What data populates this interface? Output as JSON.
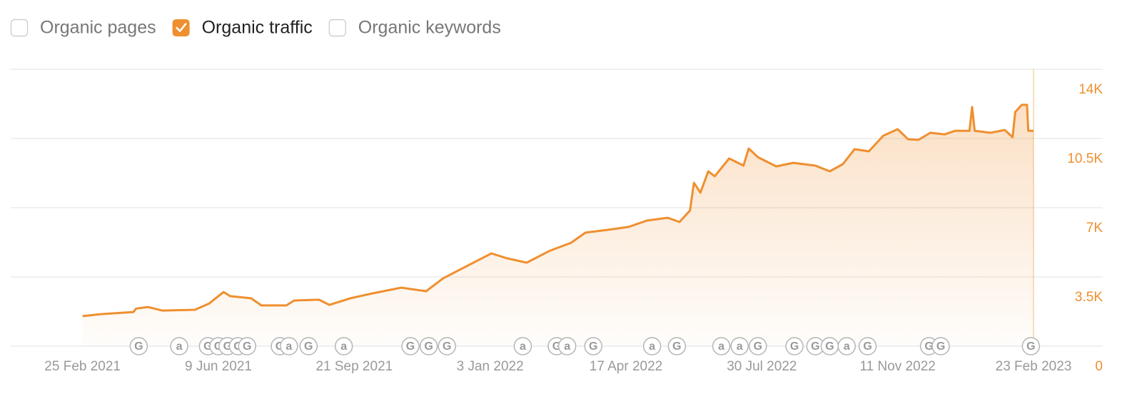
{
  "controls": [
    {
      "label": "Organic pages",
      "checked": false
    },
    {
      "label": "Organic traffic",
      "checked": true
    },
    {
      "label": "Organic keywords",
      "checked": false
    }
  ],
  "chart_data": {
    "type": "area",
    "x": [
      "2021-02-25",
      "2021-03-11",
      "2021-04-05",
      "2021-04-07",
      "2021-04-16",
      "2021-04-27",
      "2021-05-22",
      "2021-06-02",
      "2021-06-13",
      "2021-06-18",
      "2021-07-04",
      "2021-07-12",
      "2021-07-31",
      "2021-08-06",
      "2021-08-25",
      "2021-09-02",
      "2021-09-18",
      "2021-10-05",
      "2021-10-27",
      "2021-11-15",
      "2021-11-28",
      "2021-12-17",
      "2022-01-04",
      "2022-01-16",
      "2022-01-31",
      "2022-02-18",
      "2022-03-06",
      "2022-03-17",
      "2022-04-03",
      "2022-04-19",
      "2022-05-03",
      "2022-05-19",
      "2022-05-28",
      "2022-06-05",
      "2022-06-08",
      "2022-06-13",
      "2022-06-19",
      "2022-06-24",
      "2022-07-05",
      "2022-07-16",
      "2022-07-20",
      "2022-07-27",
      "2022-08-10",
      "2022-08-23",
      "2022-09-09",
      "2022-09-20",
      "2022-09-30",
      "2022-10-09",
      "2022-10-20",
      "2022-10-31",
      "2022-11-11",
      "2022-11-19",
      "2022-11-27",
      "2022-12-06",
      "2022-12-17",
      "2022-12-25",
      "2023-01-05",
      "2023-01-07",
      "2023-01-09",
      "2023-01-21",
      "2023-02-01",
      "2023-02-07",
      "2023-02-09",
      "2023-02-14",
      "2023-02-18",
      "2023-02-19",
      "2023-02-23"
    ],
    "series": [
      {
        "name": "Organic traffic",
        "color": "#ef8f2f",
        "values": [
          1520,
          1620,
          1730,
          1900,
          1980,
          1800,
          1840,
          2160,
          2740,
          2530,
          2420,
          2060,
          2060,
          2310,
          2350,
          2090,
          2420,
          2670,
          2960,
          2780,
          3430,
          4080,
          4690,
          4440,
          4220,
          4830,
          5230,
          5740,
          5880,
          6030,
          6350,
          6490,
          6280,
          6860,
          8260,
          7760,
          8840,
          8590,
          9490,
          9130,
          9990,
          9560,
          9090,
          9270,
          9130,
          8840,
          9200,
          9960,
          9850,
          10640,
          10970,
          10460,
          10430,
          10790,
          10710,
          10890,
          10890,
          12090,
          10890,
          10790,
          10930,
          10570,
          11840,
          12200,
          12200,
          10890,
          10890
        ]
      }
    ],
    "xlim": [
      "2021-01-01",
      "2023-04-17"
    ],
    "xticks": [
      {
        "value": "2021-02-25",
        "label": "25 Feb 2021"
      },
      {
        "value": "2021-06-09",
        "label": "9 Jun 2021"
      },
      {
        "value": "2021-09-21",
        "label": "21 Sep 2021"
      },
      {
        "value": "2022-01-03",
        "label": "3 Jan 2022"
      },
      {
        "value": "2022-04-17",
        "label": "17 Apr 2022"
      },
      {
        "value": "2022-07-30",
        "label": "30 Jul 2022"
      },
      {
        "value": "2022-11-11",
        "label": "11 Nov 2022"
      },
      {
        "value": "2023-02-23",
        "label": "23 Feb 2023"
      }
    ],
    "ylim": [
      0,
      14000
    ],
    "yticks": [
      0,
      {
        "value": 3500,
        "label": "3.5K"
      },
      {
        "value": 7000,
        "label": "7K"
      },
      {
        "value": 10500,
        "label": "10.5K"
      },
      {
        "value": 14000,
        "label": "14K"
      }
    ],
    "grid": true,
    "markers": [
      {
        "x": "2021-04-09",
        "label": "G"
      },
      {
        "x": "2021-05-10",
        "label": "a"
      },
      {
        "x": "2021-06-01",
        "label": "G"
      },
      {
        "x": "2021-06-09",
        "label": "G"
      },
      {
        "x": "2021-06-16",
        "label": "G"
      },
      {
        "x": "2021-06-24",
        "label": "G"
      },
      {
        "x": "2021-07-01",
        "label": "G"
      },
      {
        "x": "2021-07-26",
        "label": "G"
      },
      {
        "x": "2021-08-02",
        "label": "a"
      },
      {
        "x": "2021-08-17",
        "label": "G"
      },
      {
        "x": "2021-09-13",
        "label": "a"
      },
      {
        "x": "2021-11-03",
        "label": "G"
      },
      {
        "x": "2021-11-17",
        "label": "G"
      },
      {
        "x": "2021-12-01",
        "label": "G"
      },
      {
        "x": "2022-01-28",
        "label": "a"
      },
      {
        "x": "2022-02-23",
        "label": "G"
      },
      {
        "x": "2022-03-03",
        "label": "a"
      },
      {
        "x": "2022-03-23",
        "label": "G"
      },
      {
        "x": "2022-05-07",
        "label": "a"
      },
      {
        "x": "2022-05-26",
        "label": "G"
      },
      {
        "x": "2022-06-29",
        "label": "a"
      },
      {
        "x": "2022-07-13",
        "label": "a"
      },
      {
        "x": "2022-07-27",
        "label": "G"
      },
      {
        "x": "2022-08-24",
        "label": "G"
      },
      {
        "x": "2022-09-09",
        "label": "G"
      },
      {
        "x": "2022-09-20",
        "label": "G"
      },
      {
        "x": "2022-10-03",
        "label": "a"
      },
      {
        "x": "2022-10-19",
        "label": "G"
      },
      {
        "x": "2022-12-05",
        "label": "G"
      },
      {
        "x": "2022-12-14",
        "label": "G"
      },
      {
        "x": "2023-02-21",
        "label": "G"
      }
    ]
  }
}
